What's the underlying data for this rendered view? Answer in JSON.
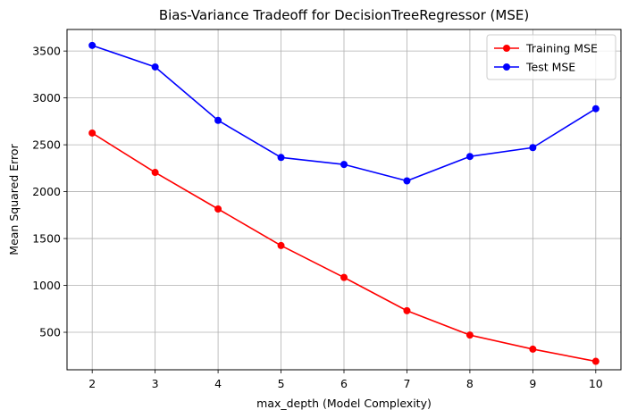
{
  "chart_data": {
    "type": "line",
    "title": "Bias-Variance Tradeoff for DecisionTreeRegressor (MSE)",
    "xlabel": "max_depth (Model Complexity)",
    "ylabel": "Mean Squared Error",
    "x": [
      2,
      3,
      4,
      5,
      6,
      7,
      8,
      9,
      10
    ],
    "xlim": [
      1.6,
      10.4
    ],
    "ylim": [
      100,
      3730
    ],
    "xticks": [
      2,
      3,
      4,
      5,
      6,
      7,
      8,
      9,
      10
    ],
    "yticks": [
      500,
      1000,
      1500,
      2000,
      2500,
      3000,
      3500
    ],
    "grid": true,
    "legend_position": "upper right",
    "series": [
      {
        "name": "Training MSE",
        "color": "#ff0000",
        "marker": "circle",
        "values": [
          2625,
          2205,
          1815,
          1425,
          1085,
          730,
          470,
          320,
          190
        ]
      },
      {
        "name": "Test MSE",
        "color": "#0000ff",
        "marker": "circle",
        "values": [
          3560,
          3330,
          2760,
          2365,
          2290,
          2115,
          2375,
          2470,
          2885
        ]
      }
    ]
  }
}
